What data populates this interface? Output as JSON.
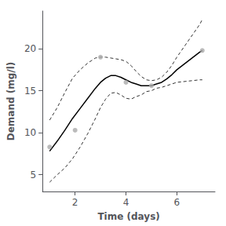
{
  "chart_data": {
    "type": "scatter",
    "xlabel": "Time (days)",
    "ylabel": "Demand (mg/l)",
    "xlim": [
      0.72,
      7.5
    ],
    "ylim": [
      3.0,
      24.5
    ],
    "xticks": [
      2,
      4,
      6
    ],
    "yticks": [
      5,
      10,
      15,
      20
    ],
    "grid": false,
    "series": [
      {
        "type": "line",
        "line_style": "dashed",
        "color": "#333333",
        "x": [
          1.0,
          1.3,
          1.6,
          1.9,
          2.2,
          2.5,
          2.8,
          3.0,
          3.2,
          3.4,
          3.6,
          3.8,
          4.0,
          4.2,
          4.4,
          4.6,
          4.8,
          5.0,
          5.2,
          5.4,
          5.6,
          5.8,
          6.0,
          6.3,
          6.6,
          6.9,
          7.0
        ],
        "values": [
          11.5,
          13.0,
          14.8,
          16.5,
          17.5,
          18.3,
          18.9,
          19.0,
          19.0,
          18.9,
          18.8,
          18.7,
          18.5,
          18.0,
          17.3,
          16.7,
          16.3,
          16.2,
          16.3,
          16.6,
          17.2,
          18.0,
          19.0,
          20.3,
          21.6,
          22.9,
          23.5
        ]
      },
      {
        "type": "line",
        "line_style": "dashed",
        "color": "#333333",
        "x": [
          1.0,
          1.3,
          1.6,
          1.9,
          2.2,
          2.5,
          2.8,
          3.0,
          3.2,
          3.4,
          3.6,
          3.8,
          4.0,
          4.2,
          4.4,
          4.6,
          4.8,
          5.0,
          5.2,
          5.4,
          5.6,
          5.8,
          6.0,
          6.3,
          6.6,
          6.9,
          7.0
        ],
        "values": [
          4.1,
          5.0,
          5.8,
          6.9,
          8.3,
          9.9,
          11.7,
          13.0,
          14.0,
          14.7,
          14.8,
          14.5,
          14.1,
          14.0,
          14.3,
          14.5,
          14.9,
          15.0,
          15.3,
          15.4,
          15.6,
          15.8,
          16.0,
          16.1,
          16.2,
          16.3,
          16.3
        ]
      },
      {
        "type": "line",
        "line_style": "solid",
        "color": "#000000",
        "x": [
          1.0,
          1.3,
          1.6,
          1.9,
          2.2,
          2.5,
          2.8,
          3.0,
          3.2,
          3.4,
          3.6,
          3.8,
          4.0,
          4.2,
          4.4,
          4.6,
          4.8,
          5.0,
          5.2,
          5.4,
          5.6,
          5.8,
          6.0,
          6.3,
          6.6,
          6.9,
          7.0
        ],
        "values": [
          7.8,
          9.0,
          10.3,
          11.7,
          12.9,
          14.1,
          15.3,
          16.0,
          16.5,
          16.8,
          16.8,
          16.6,
          16.3,
          16.0,
          15.8,
          15.6,
          15.6,
          15.6,
          15.8,
          16.0,
          16.4,
          16.9,
          17.5,
          18.2,
          18.9,
          19.6,
          19.8
        ]
      },
      {
        "type": "scatter",
        "color": "#aaaaaa",
        "x": [
          1,
          2,
          3,
          4,
          5,
          7
        ],
        "values": [
          8.3,
          10.3,
          19.0,
          16.0,
          15.6,
          19.8
        ]
      }
    ]
  }
}
